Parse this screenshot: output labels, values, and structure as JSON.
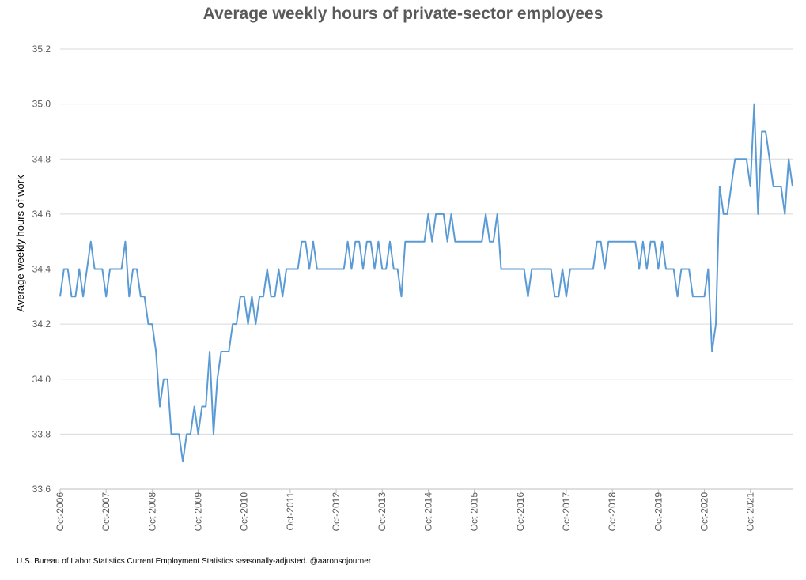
{
  "chart_data": {
    "type": "line",
    "title": "Average weekly hours of private-sector employees",
    "ylabel": "Average weekly hours of work",
    "xlabel": "",
    "ylim": [
      33.6,
      35.2
    ],
    "y_ticks": [
      "33.6",
      "33.8",
      "34.0",
      "34.2",
      "34.4",
      "34.6",
      "34.8",
      "35.0",
      "35.2"
    ],
    "x_ticks": [
      "Oct-2006",
      "Oct-2007",
      "Oct-2008",
      "Oct-2009",
      "Oct-2010",
      "Oct-2011",
      "Oct-2012",
      "Oct-2013",
      "Oct-2014",
      "Oct-2015",
      "Oct-2016",
      "Oct-2017",
      "Oct-2018",
      "Oct-2019",
      "Oct-2020",
      "Oct-2021"
    ],
    "grid": true,
    "line_color": "#5b9bd5",
    "x_start": "Oct-2006",
    "x_end": "Oct-2021",
    "series": [
      {
        "values": [
          34.3,
          34.4,
          34.4,
          34.3,
          34.3,
          34.4,
          34.3,
          34.4,
          34.5,
          34.4,
          34.4,
          34.4,
          34.3,
          34.4,
          34.4,
          34.4,
          34.4,
          34.5,
          34.3,
          34.4,
          34.4,
          34.3,
          34.3,
          34.2,
          34.2,
          34.1,
          33.9,
          34.0,
          34.0,
          33.8,
          33.8,
          33.8,
          33.7,
          33.8,
          33.8,
          33.9,
          33.8,
          33.9,
          33.9,
          34.1,
          33.8,
          34.0,
          34.1,
          34.1,
          34.1,
          34.2,
          34.2,
          34.3,
          34.3,
          34.2,
          34.3,
          34.2,
          34.3,
          34.3,
          34.4,
          34.3,
          34.3,
          34.4,
          34.3,
          34.4,
          34.4,
          34.4,
          34.4,
          34.5,
          34.5,
          34.4,
          34.5,
          34.4,
          34.4,
          34.4,
          34.4,
          34.4,
          34.4,
          34.4,
          34.4,
          34.5,
          34.4,
          34.5,
          34.5,
          34.4,
          34.5,
          34.5,
          34.4,
          34.5,
          34.4,
          34.4,
          34.5,
          34.4,
          34.4,
          34.3,
          34.5,
          34.5,
          34.5,
          34.5,
          34.5,
          34.5,
          34.6,
          34.5,
          34.6,
          34.6,
          34.6,
          34.5,
          34.6,
          34.5,
          34.5,
          34.5,
          34.5,
          34.5,
          34.5,
          34.5,
          34.5,
          34.6,
          34.5,
          34.5,
          34.6,
          34.4,
          34.4,
          34.4,
          34.4,
          34.4,
          34.4,
          34.4,
          34.3,
          34.4,
          34.4,
          34.4,
          34.4,
          34.4,
          34.4,
          34.3,
          34.3,
          34.4,
          34.3,
          34.4,
          34.4,
          34.4,
          34.4,
          34.4,
          34.4,
          34.4,
          34.5,
          34.5,
          34.4,
          34.5,
          34.5,
          34.5,
          34.5,
          34.5,
          34.5,
          34.5,
          34.5,
          34.4,
          34.5,
          34.4,
          34.5,
          34.5,
          34.4,
          34.5,
          34.4,
          34.4,
          34.4,
          34.3,
          34.4,
          34.4,
          34.4,
          34.3,
          34.3,
          34.3,
          34.3,
          34.4,
          34.1,
          34.2,
          34.7,
          34.6,
          34.6,
          34.7,
          34.8,
          34.8,
          34.8,
          34.8,
          34.7,
          35.0,
          34.6,
          34.9,
          34.9,
          34.8,
          34.7,
          34.7,
          34.7,
          34.6,
          34.8,
          34.7
        ]
      }
    ]
  },
  "source_note": "U.S. Bureau of Labor Statistics Current Employment Statistics seasonally-adjusted. @aaronsojourner"
}
